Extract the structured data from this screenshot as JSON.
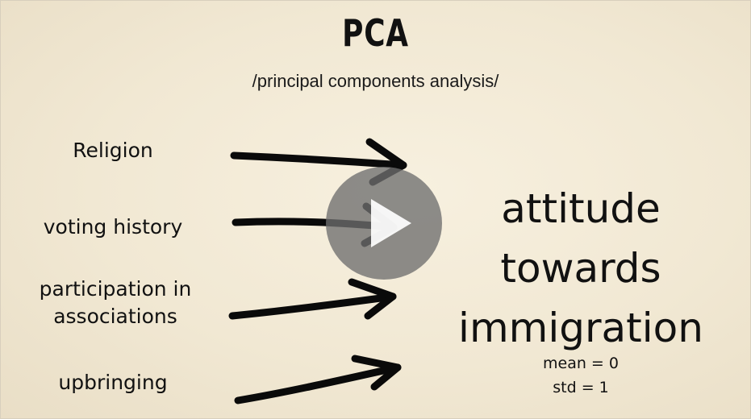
{
  "slide": {
    "title": "PCA",
    "subtitle": "/principal components analysis/"
  },
  "diagram": {
    "inputs": [
      {
        "lines": [
          "Religion"
        ]
      },
      {
        "lines": [
          "voting history"
        ]
      },
      {
        "lines": [
          "participation in",
          "associations"
        ]
      },
      {
        "lines": [
          "upbringing"
        ]
      }
    ],
    "outcome": {
      "lines": [
        "attitude",
        "towards",
        "immigration"
      ]
    },
    "stats": {
      "mean": "mean = 0",
      "std": "std = 1"
    }
  },
  "player": {
    "play_icon": "play-icon"
  }
}
